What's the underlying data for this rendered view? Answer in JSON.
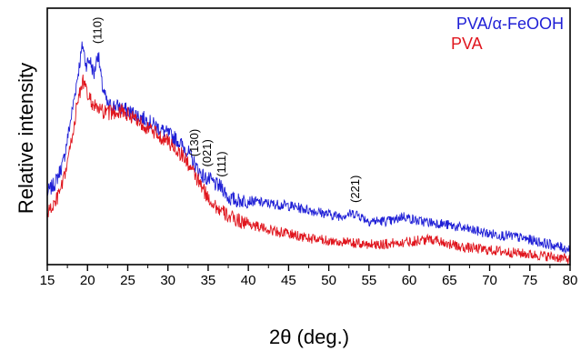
{
  "chart_data": {
    "type": "line",
    "xlabel": "2θ (deg.)",
    "ylabel": "Relative intensity",
    "xlim": [
      15,
      80
    ],
    "ylim": [
      0,
      100
    ],
    "xticks": [
      15,
      20,
      25,
      30,
      35,
      40,
      45,
      50,
      55,
      60,
      65,
      70,
      75,
      80
    ],
    "grid": false,
    "legend_position": "top-right",
    "series": [
      {
        "name": "PVA/α-FeOOH",
        "color": "#1f1fd6",
        "points": [
          [
            15,
            28
          ],
          [
            16,
            32
          ],
          [
            17,
            40
          ],
          [
            18,
            58
          ],
          [
            18.8,
            74
          ],
          [
            19.4,
            86
          ],
          [
            19.8,
            78
          ],
          [
            20.3,
            80
          ],
          [
            20.8,
            74
          ],
          [
            21.3,
            83
          ],
          [
            21.8,
            70
          ],
          [
            22.5,
            62
          ],
          [
            23.5,
            62
          ],
          [
            25,
            60
          ],
          [
            27,
            57
          ],
          [
            29,
            53
          ],
          [
            31,
            49
          ],
          [
            32.5,
            44
          ],
          [
            33.5,
            38
          ],
          [
            34.5,
            34
          ],
          [
            35.2,
            33
          ],
          [
            36,
            31
          ],
          [
            36.8,
            30
          ],
          [
            37.5,
            26
          ],
          [
            38.5,
            25
          ],
          [
            40,
            25
          ],
          [
            42,
            24
          ],
          [
            45,
            23
          ],
          [
            48,
            21
          ],
          [
            51,
            19
          ],
          [
            53.3,
            20
          ],
          [
            55,
            17
          ],
          [
            58,
            17
          ],
          [
            59.2,
            19
          ],
          [
            61,
            17
          ],
          [
            64,
            16
          ],
          [
            67,
            14
          ],
          [
            70,
            12
          ],
          [
            73,
            11
          ],
          [
            76,
            9
          ],
          [
            78.5,
            7
          ],
          [
            80,
            6
          ]
        ]
      },
      {
        "name": "PVA",
        "color": "#e0161e",
        "points": [
          [
            15,
            20
          ],
          [
            16,
            24
          ],
          [
            17,
            32
          ],
          [
            18,
            48
          ],
          [
            18.8,
            64
          ],
          [
            19.4,
            72
          ],
          [
            20,
            66
          ],
          [
            20.8,
            62
          ],
          [
            21.5,
            60
          ],
          [
            22.5,
            59
          ],
          [
            24,
            60
          ],
          [
            26,
            57
          ],
          [
            28,
            52
          ],
          [
            30,
            48
          ],
          [
            32,
            42
          ],
          [
            33.5,
            34
          ],
          [
            35,
            26
          ],
          [
            36.5,
            21
          ],
          [
            38,
            18
          ],
          [
            40,
            16
          ],
          [
            42,
            14
          ],
          [
            45,
            12
          ],
          [
            48,
            10
          ],
          [
            51,
            9
          ],
          [
            54,
            8
          ],
          [
            57,
            8
          ],
          [
            60,
            9
          ],
          [
            63,
            10
          ],
          [
            66,
            7
          ],
          [
            69,
            6
          ],
          [
            72,
            5
          ],
          [
            75,
            4
          ],
          [
            78,
            3
          ],
          [
            80,
            2
          ]
        ]
      }
    ],
    "annotations": [
      {
        "text": "(110)",
        "x": 21.3,
        "y": 84
      },
      {
        "text": "(130)",
        "x": 33.3,
        "y": 40
      },
      {
        "text": "(021)",
        "x": 34.9,
        "y": 36
      },
      {
        "text": "(111)",
        "x": 36.7,
        "y": 32
      },
      {
        "text": "(221)",
        "x": 53.3,
        "y": 22
      }
    ]
  }
}
